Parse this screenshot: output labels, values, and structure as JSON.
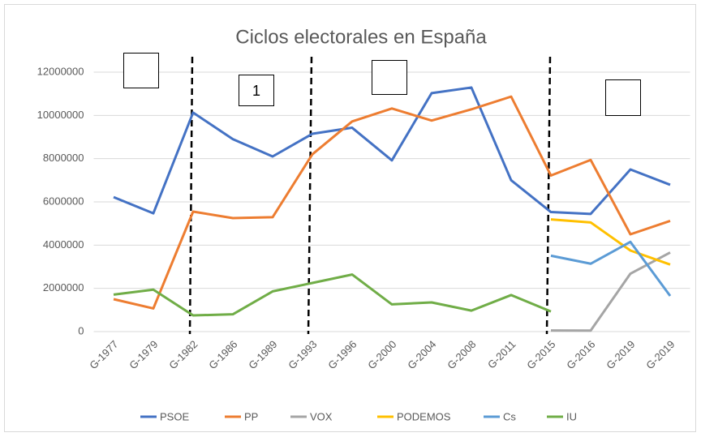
{
  "chart_data": {
    "type": "line",
    "title": "Ciclos electorales en España",
    "categories": [
      "G-1977",
      "G-1979",
      "G-1982",
      "G-1986",
      "G-1989",
      "G-1993",
      "G-1996",
      "G-2000",
      "G-2004",
      "G-2008",
      "G-2011",
      "G-2015",
      "G-2016",
      "G-2019",
      "G-2019"
    ],
    "series": [
      {
        "name": "PSOE",
        "color": "#4472c4",
        "values": [
          6220000,
          5470000,
          10130000,
          8900000,
          8100000,
          9150000,
          9430000,
          7920000,
          11030000,
          11290000,
          7000000,
          5530000,
          5440000,
          7500000,
          6790000
        ]
      },
      {
        "name": "PP",
        "color": "#ed7d31",
        "values": [
          1500000,
          1070000,
          5550000,
          5250000,
          5290000,
          8200000,
          9720000,
          10320000,
          9760000,
          10280000,
          10870000,
          7220000,
          7940000,
          4500000,
          5120000
        ]
      },
      {
        "name": "VOX",
        "color": "#a5a5a5",
        "values": [
          null,
          null,
          null,
          null,
          null,
          null,
          null,
          null,
          null,
          null,
          null,
          50000,
          47000,
          2680000,
          3660000
        ]
      },
      {
        "name": "PODEMOS",
        "color": "#ffc000",
        "values": [
          null,
          null,
          null,
          null,
          null,
          null,
          null,
          null,
          null,
          null,
          null,
          5190000,
          5050000,
          3750000,
          3100000
        ]
      },
      {
        "name": "Cs",
        "color": "#5b9bd5",
        "values": [
          null,
          null,
          null,
          null,
          null,
          null,
          null,
          null,
          null,
          null,
          null,
          3510000,
          3140000,
          4150000,
          1650000
        ]
      },
      {
        "name": "IU",
        "color": "#70ad47",
        "values": [
          1710000,
          1940000,
          750000,
          800000,
          1860000,
          2250000,
          2640000,
          1260000,
          1350000,
          970000,
          1690000,
          930000,
          null,
          null,
          null
        ]
      }
    ],
    "ylim": [
      0,
      12000000
    ],
    "yticks": [
      0,
      2000000,
      4000000,
      6000000,
      8000000,
      10000000,
      12000000
    ],
    "grid": true,
    "legend": "bottom",
    "annotations": [
      "1"
    ]
  }
}
